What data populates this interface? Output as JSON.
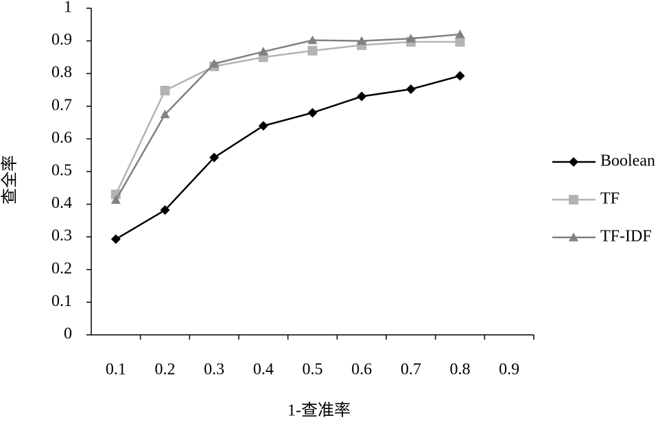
{
  "chart_data": {
    "type": "line",
    "xlabel": "1-查准率",
    "ylabel": "查全率",
    "categories": [
      "0.1",
      "0.2",
      "0.3",
      "0.4",
      "0.5",
      "0.6",
      "0.7",
      "0.8",
      "0.9"
    ],
    "series": [
      {
        "name": "Boolean",
        "color": "#000000",
        "marker": "diamond",
        "values": [
          0.293,
          0.382,
          0.543,
          0.64,
          0.68,
          0.73,
          0.752,
          0.793,
          null
        ]
      },
      {
        "name": "TF",
        "color": "#b3b3b3",
        "marker": "square",
        "values": [
          0.43,
          0.748,
          0.822,
          0.85,
          0.87,
          0.887,
          0.897,
          0.897,
          null
        ]
      },
      {
        "name": "TF-IDF",
        "color": "#808080",
        "marker": "triangle",
        "values": [
          0.413,
          0.675,
          0.83,
          0.867,
          0.902,
          0.9,
          0.907,
          0.92,
          null
        ]
      }
    ],
    "ylim": [
      0,
      1
    ],
    "yticks": [
      0,
      0.1,
      0.2,
      0.3,
      0.4,
      0.5,
      0.6,
      0.7,
      0.8,
      0.9,
      1
    ],
    "legend": "right"
  }
}
